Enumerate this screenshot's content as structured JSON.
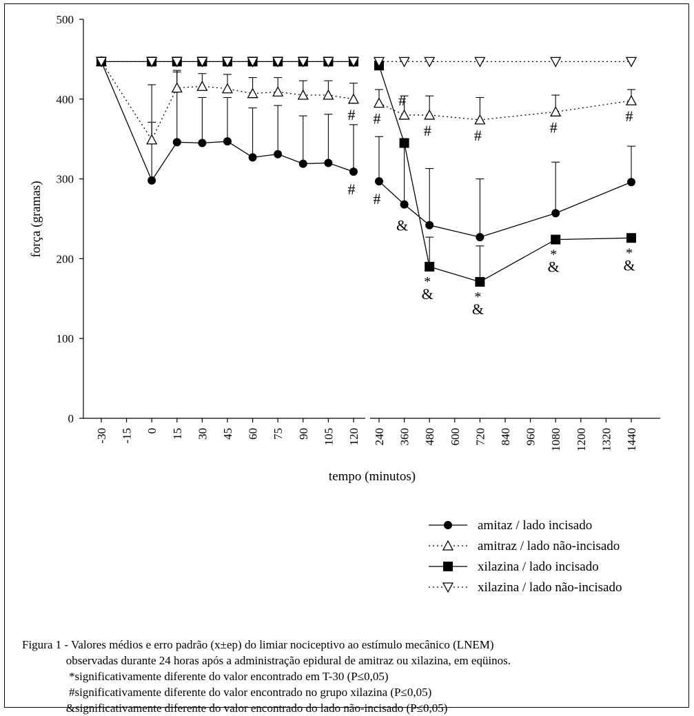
{
  "chart_data": {
    "type": "line",
    "xlabel": "tempo (minutos)",
    "ylabel": "força (gramas)",
    "ylim": [
      0,
      500
    ],
    "yticks": [
      "0",
      "100",
      "200",
      "300",
      "400",
      "500"
    ],
    "categories": [
      "-30",
      "-15",
      "0",
      "15",
      "30",
      "45",
      "60",
      "75",
      "90",
      "105",
      "120",
      "240",
      "360",
      "480",
      "600",
      "720",
      "840",
      "960",
      "1080",
      "1200",
      "1320",
      "1440"
    ],
    "axis_break": "between 120 and 240",
    "grid": false,
    "legend_position": "bottom-right",
    "series": [
      {
        "name": "amitaz / lado incisado",
        "marker": "filled-circle",
        "line": "solid",
        "points": [
          {
            "x": "-30",
            "y": 447
          },
          {
            "x": "0",
            "y": 298,
            "err": 120
          },
          {
            "x": "15",
            "y": 346,
            "err": 88
          },
          {
            "x": "30",
            "y": 345,
            "err": 57
          },
          {
            "x": "45",
            "y": 347,
            "err": 55
          },
          {
            "x": "60",
            "y": 327,
            "err": 62
          },
          {
            "x": "75",
            "y": 331,
            "err": 61
          },
          {
            "x": "90",
            "y": 319,
            "err": 60
          },
          {
            "x": "105",
            "y": 320,
            "err": 61
          },
          {
            "x": "120",
            "y": 309,
            "err": 59
          },
          {
            "x": "240",
            "y": 297,
            "err": 56
          },
          {
            "x": "360",
            "y": 268,
            "err": 75
          },
          {
            "x": "480",
            "y": 242,
            "err": 71
          },
          {
            "x": "720",
            "y": 227,
            "err": 73
          },
          {
            "x": "1080",
            "y": 257,
            "err": 64
          },
          {
            "x": "1440",
            "y": 296,
            "err": 45
          }
        ]
      },
      {
        "name": "amitraz / lado não-incisado",
        "marker": "open-triangle-up",
        "line": "dotted",
        "points": [
          {
            "x": "-30",
            "y": 447
          },
          {
            "x": "0",
            "y": 349,
            "err": 22
          },
          {
            "x": "15",
            "y": 414,
            "err": 22
          },
          {
            "x": "30",
            "y": 416,
            "err": 16
          },
          {
            "x": "45",
            "y": 413,
            "err": 18
          },
          {
            "x": "60",
            "y": 407,
            "err": 20
          },
          {
            "x": "75",
            "y": 409,
            "err": 18
          },
          {
            "x": "90",
            "y": 405,
            "err": 18
          },
          {
            "x": "105",
            "y": 405,
            "err": 18
          },
          {
            "x": "120",
            "y": 400,
            "err": 20
          },
          {
            "x": "240",
            "y": 395,
            "err": 17
          },
          {
            "x": "360",
            "y": 380,
            "err": 24
          },
          {
            "x": "480",
            "y": 380,
            "err": 24
          },
          {
            "x": "720",
            "y": 374,
            "err": 28
          },
          {
            "x": "1080",
            "y": 384,
            "err": 21
          },
          {
            "x": "1440",
            "y": 398,
            "err": 14
          }
        ]
      },
      {
        "name": "xilazina / lado incisado",
        "marker": "filled-square",
        "line": "solid",
        "points": [
          {
            "x": "-30",
            "y": 447
          },
          {
            "x": "0",
            "y": 447
          },
          {
            "x": "15",
            "y": 447
          },
          {
            "x": "30",
            "y": 447
          },
          {
            "x": "45",
            "y": 447
          },
          {
            "x": "60",
            "y": 447
          },
          {
            "x": "75",
            "y": 447
          },
          {
            "x": "90",
            "y": 447
          },
          {
            "x": "105",
            "y": 447
          },
          {
            "x": "120",
            "y": 447
          },
          {
            "x": "240",
            "y": 442
          },
          {
            "x": "360",
            "y": 345
          },
          {
            "x": "480",
            "y": 190,
            "err": 37
          },
          {
            "x": "720",
            "y": 171,
            "err": 45
          },
          {
            "x": "1080",
            "y": 224
          },
          {
            "x": "1440",
            "y": 226
          }
        ]
      },
      {
        "name": "xilazina / lado não-incisado",
        "marker": "open-triangle-down",
        "line": "dotted",
        "points": [
          {
            "x": "-30",
            "y": 447
          },
          {
            "x": "0",
            "y": 447
          },
          {
            "x": "15",
            "y": 447
          },
          {
            "x": "30",
            "y": 447
          },
          {
            "x": "45",
            "y": 447
          },
          {
            "x": "60",
            "y": 447
          },
          {
            "x": "75",
            "y": 447
          },
          {
            "x": "90",
            "y": 447
          },
          {
            "x": "105",
            "y": 447
          },
          {
            "x": "120",
            "y": 447
          },
          {
            "x": "240",
            "y": 447
          },
          {
            "x": "360",
            "y": 447
          },
          {
            "x": "480",
            "y": 447
          },
          {
            "x": "720",
            "y": 447
          },
          {
            "x": "1080",
            "y": 447
          },
          {
            "x": "1440",
            "y": 447
          }
        ]
      }
    ],
    "annotations": [
      {
        "x": "120",
        "text": "#",
        "anchor": "amitaz / lado incisado",
        "place": "below"
      },
      {
        "x": "240",
        "text": "#",
        "anchor": "amitaz / lado incisado",
        "place": "below"
      },
      {
        "x": "120",
        "text": "#",
        "anchor": "amitraz / lado não-incisado",
        "place": "below"
      },
      {
        "x": "240",
        "text": "#",
        "anchor": "amitraz / lado não-incisado",
        "place": "below"
      },
      {
        "x": "360",
        "text": "#",
        "anchor": "amitraz / lado não-incisado",
        "place": "above"
      },
      {
        "x": "480",
        "text": "#",
        "anchor": "amitraz / lado não-incisado",
        "place": "below"
      },
      {
        "x": "720",
        "text": "#",
        "anchor": "amitraz / lado não-incisado",
        "place": "below"
      },
      {
        "x": "1080",
        "text": "#",
        "anchor": "amitraz / lado não-incisado",
        "place": "below"
      },
      {
        "x": "1440",
        "text": "#",
        "anchor": "amitraz / lado não-incisado",
        "place": "below"
      },
      {
        "x": "360",
        "text": "&",
        "anchor": "amitaz / lado incisado",
        "place": "below"
      },
      {
        "x": "480",
        "text": "*",
        "anchor": "xilazina / lado incisado",
        "place": "below"
      },
      {
        "x": "480",
        "text": "&",
        "anchor": "xilazina / lado incisado",
        "place": "below2"
      },
      {
        "x": "720",
        "text": "*",
        "anchor": "xilazina / lado incisado",
        "place": "below"
      },
      {
        "x": "720",
        "text": "&",
        "anchor": "xilazina / lado incisado",
        "place": "below2"
      },
      {
        "x": "1080",
        "text": "*",
        "anchor": "xilazina / lado incisado",
        "place": "below"
      },
      {
        "x": "1080",
        "text": "&",
        "anchor": "xilazina / lado incisado",
        "place": "below2"
      },
      {
        "x": "1440",
        "text": "*",
        "anchor": "xilazina / lado incisado",
        "place": "below"
      },
      {
        "x": "1440",
        "text": "&",
        "anchor": "xilazina / lado incisado",
        "place": "below2"
      }
    ]
  },
  "caption": {
    "lines": [
      "Figura 1 - Valores médios e erro padrão (x±ep) do limiar nociceptivo ao estímulo mecânico (LNEM)",
      "               observadas durante 24 horas após a administração epidural de amitraz ou xilazina, em eqüinos.",
      "                *significativamente diferente do valor encontrado em T-30 (P≤0,05)",
      "                #significativamente diferente do valor encontrado no grupo xilazina (P≤0,05)",
      "               &significativamente diferente do valor encontrado do lado não-incisado (P≤0,05)"
    ]
  }
}
